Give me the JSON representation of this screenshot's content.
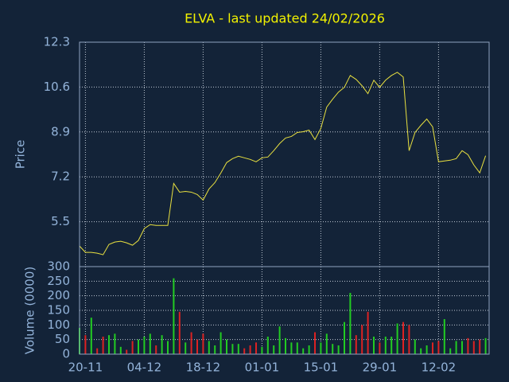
{
  "chart_data": [
    {
      "type": "line",
      "title": "ELVA - last updated 24/02/2026",
      "ylabel": "Price",
      "color": "#e8e040",
      "values": [
        4.58,
        4.34,
        4.34,
        4.31,
        4.25,
        4.64,
        4.73,
        4.76,
        4.7,
        4.61,
        4.79,
        5.24,
        5.39,
        5.36,
        5.36,
        5.36,
        6.95,
        6.62,
        6.65,
        6.62,
        6.53,
        6.32,
        6.74,
        6.98,
        7.34,
        7.74,
        7.89,
        7.98,
        7.92,
        7.86,
        7.77,
        7.92,
        7.95,
        8.19,
        8.46,
        8.67,
        8.73,
        8.88,
        8.91,
        8.97,
        8.61,
        9.03,
        9.84,
        10.14,
        10.41,
        10.59,
        11.04,
        10.89,
        10.65,
        10.35,
        10.86,
        10.59,
        10.86,
        11.04,
        11.16,
        10.98,
        8.19,
        8.88,
        9.15,
        9.39,
        9.09,
        7.77,
        7.8,
        7.83,
        7.89,
        8.19,
        8.04,
        7.65,
        7.35,
        8.0
      ],
      "ylim": [
        3.8,
        12.3
      ],
      "yticks": [
        5.5,
        7.2,
        8.9,
        10.6,
        12.3
      ],
      "grid": true
    },
    {
      "type": "bar",
      "ylabel": "Volume (0000)",
      "up_color": "#22cc22",
      "down_color": "#dd2222",
      "categories": [
        null,
        "20-11",
        null,
        null,
        null,
        null,
        null,
        null,
        null,
        null,
        null,
        "04-12",
        null,
        null,
        null,
        null,
        null,
        null,
        null,
        null,
        null,
        "18-12",
        null,
        null,
        null,
        null,
        null,
        null,
        null,
        null,
        null,
        "01-01",
        null,
        null,
        null,
        null,
        null,
        null,
        null,
        null,
        null,
        "15-01",
        null,
        null,
        null,
        null,
        null,
        null,
        null,
        null,
        null,
        "29-01",
        null,
        null,
        null,
        null,
        null,
        null,
        null,
        null,
        null,
        "12-02",
        null,
        null,
        null,
        null,
        null,
        null,
        null,
        null
      ],
      "values": [
        90,
        65,
        125,
        20,
        60,
        65,
        70,
        25,
        15,
        45,
        50,
        60,
        70,
        30,
        65,
        45,
        260,
        145,
        40,
        75,
        50,
        70,
        45,
        30,
        75,
        50,
        35,
        35,
        20,
        30,
        40,
        25,
        60,
        30,
        95,
        55,
        40,
        40,
        20,
        30,
        75,
        40,
        70,
        35,
        30,
        110,
        210,
        65,
        100,
        145,
        60,
        40,
        60,
        60,
        105,
        110,
        100,
        50,
        20,
        30,
        40,
        45,
        120,
        20,
        45,
        45,
        55,
        45,
        50,
        55
      ],
      "ylim": [
        0,
        300
      ],
      "yticks": [
        0,
        50,
        100,
        150,
        200,
        250,
        300
      ],
      "grid": true
    }
  ]
}
